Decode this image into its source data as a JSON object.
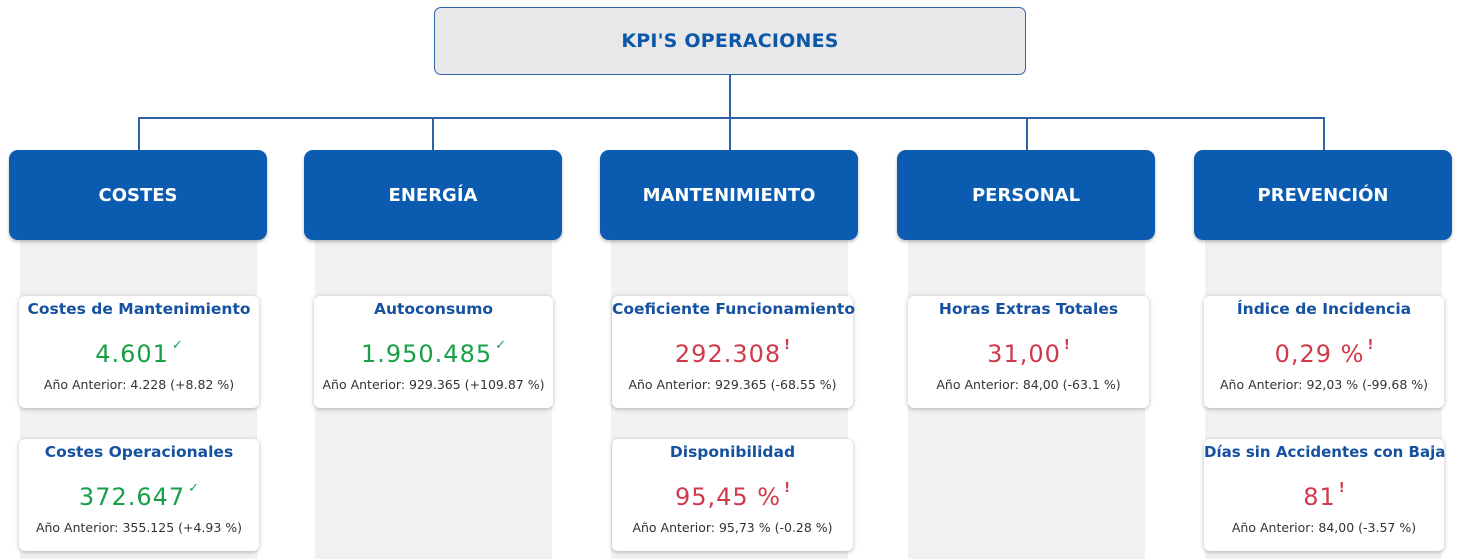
{
  "header": {
    "title": "KPI'S OPERACIONES"
  },
  "categories": [
    {
      "label": "COSTES"
    },
    {
      "label": "ENERGÍA"
    },
    {
      "label": "MANTENIMIENTO"
    },
    {
      "label": "PERSONAL"
    },
    {
      "label": "PREVENCIÓN"
    }
  ],
  "kpis": {
    "costes_mantenimiento": {
      "title": "Costes de Mantenimiento",
      "value": "4.601",
      "status": "good",
      "mark": "✓",
      "previous": "Año Anterior: 4.228 (+8.82 %)"
    },
    "costes_operacionales": {
      "title": "Costes Operacionales",
      "value": "372.647",
      "status": "good",
      "mark": "✓",
      "previous": "Año Anterior: 355.125 (+4.93 %)"
    },
    "autoconsumo": {
      "title": "Autoconsumo",
      "value": "1.950.485",
      "status": "good",
      "mark": "✓",
      "previous": "Año Anterior: 929.365 (+109.87 %)"
    },
    "coeficiente_funcionamiento": {
      "title": "Coeficiente Funcionamiento",
      "value": "292.308",
      "status": "bad",
      "mark": "!",
      "previous": "Año Anterior: 929.365 (-68.55 %)"
    },
    "disponibilidad": {
      "title": "Disponibilidad",
      "value": "95,45 %",
      "status": "bad",
      "mark": "!",
      "previous": "Año Anterior: 95,73 % (-0.28 %)"
    },
    "horas_extras_totales": {
      "title": "Horas Extras Totales",
      "value": "31,00",
      "status": "bad",
      "mark": "!",
      "previous": "Año Anterior: 84,00 (-63.1 %)"
    },
    "indice_incidencia": {
      "title": "Índice de Incidencia",
      "value": "0,29 %",
      "status": "bad",
      "mark": "!",
      "previous": "Año Anterior: 92,03 % (-99.68 %)"
    },
    "dias_sin_accidentes": {
      "title": "Días sin Accidentes con Baja",
      "value": "81",
      "status": "bad",
      "mark": "!",
      "previous": "Año Anterior: 84,00 (-3.57 %)"
    }
  },
  "colors": {
    "primary": "#0b5cb0",
    "good": "#17a046",
    "bad": "#cf3a4c",
    "title": "#1651a0"
  }
}
